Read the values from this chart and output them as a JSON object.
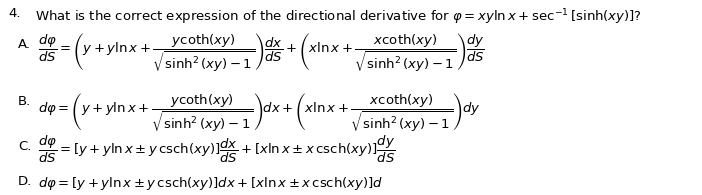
{
  "bg_color": "#ffffff",
  "text_color": "#000000",
  "q_num": "4.",
  "q_text": "What is the correct expression of the directional derivative for $\\varphi = xy\\ln x + \\sec^{-1}[\\sinh(xy)]$?",
  "A_label": "A.",
  "A_math": "$\\dfrac{d\\varphi}{dS} = \\left(y + y\\ln x + \\dfrac{y\\coth(xy)}{\\sqrt{\\sinh^2(xy)-1}}\\right)\\dfrac{dx}{dS} + \\left(x\\ln x + \\dfrac{x\\coth(xy)}{\\sqrt{\\sinh^2(xy)-1}}\\right)\\dfrac{dy}{dS}$",
  "B_label": "B.",
  "B_math": "$d\\varphi = \\left(y + y\\ln x + \\dfrac{y\\coth(xy)}{\\sqrt{\\sinh^2(xy)-1}}\\right)dx + \\left(x\\ln x + \\dfrac{x\\coth(xy)}{\\sqrt{\\sinh^2(xy)-1}}\\right)dy$",
  "C_label": "C.",
  "C_math": "$\\dfrac{d\\varphi}{dS} = [y + y\\ln x \\pm y\\,\\mathrm{csch}(xy)]\\dfrac{dx}{dS} + [x\\ln x \\pm x\\,\\mathrm{csch}(xy)]\\dfrac{dy}{dS}$",
  "D_label": "D.",
  "D_math": "$d\\varphi = [y + y\\ln x \\pm y\\,\\mathrm{csch}(xy)]dx + [x\\ln x \\pm x\\,\\mathrm{csch}(xy)]d$",
  "fontsize": 9.5,
  "fontsize_q": 9.5
}
